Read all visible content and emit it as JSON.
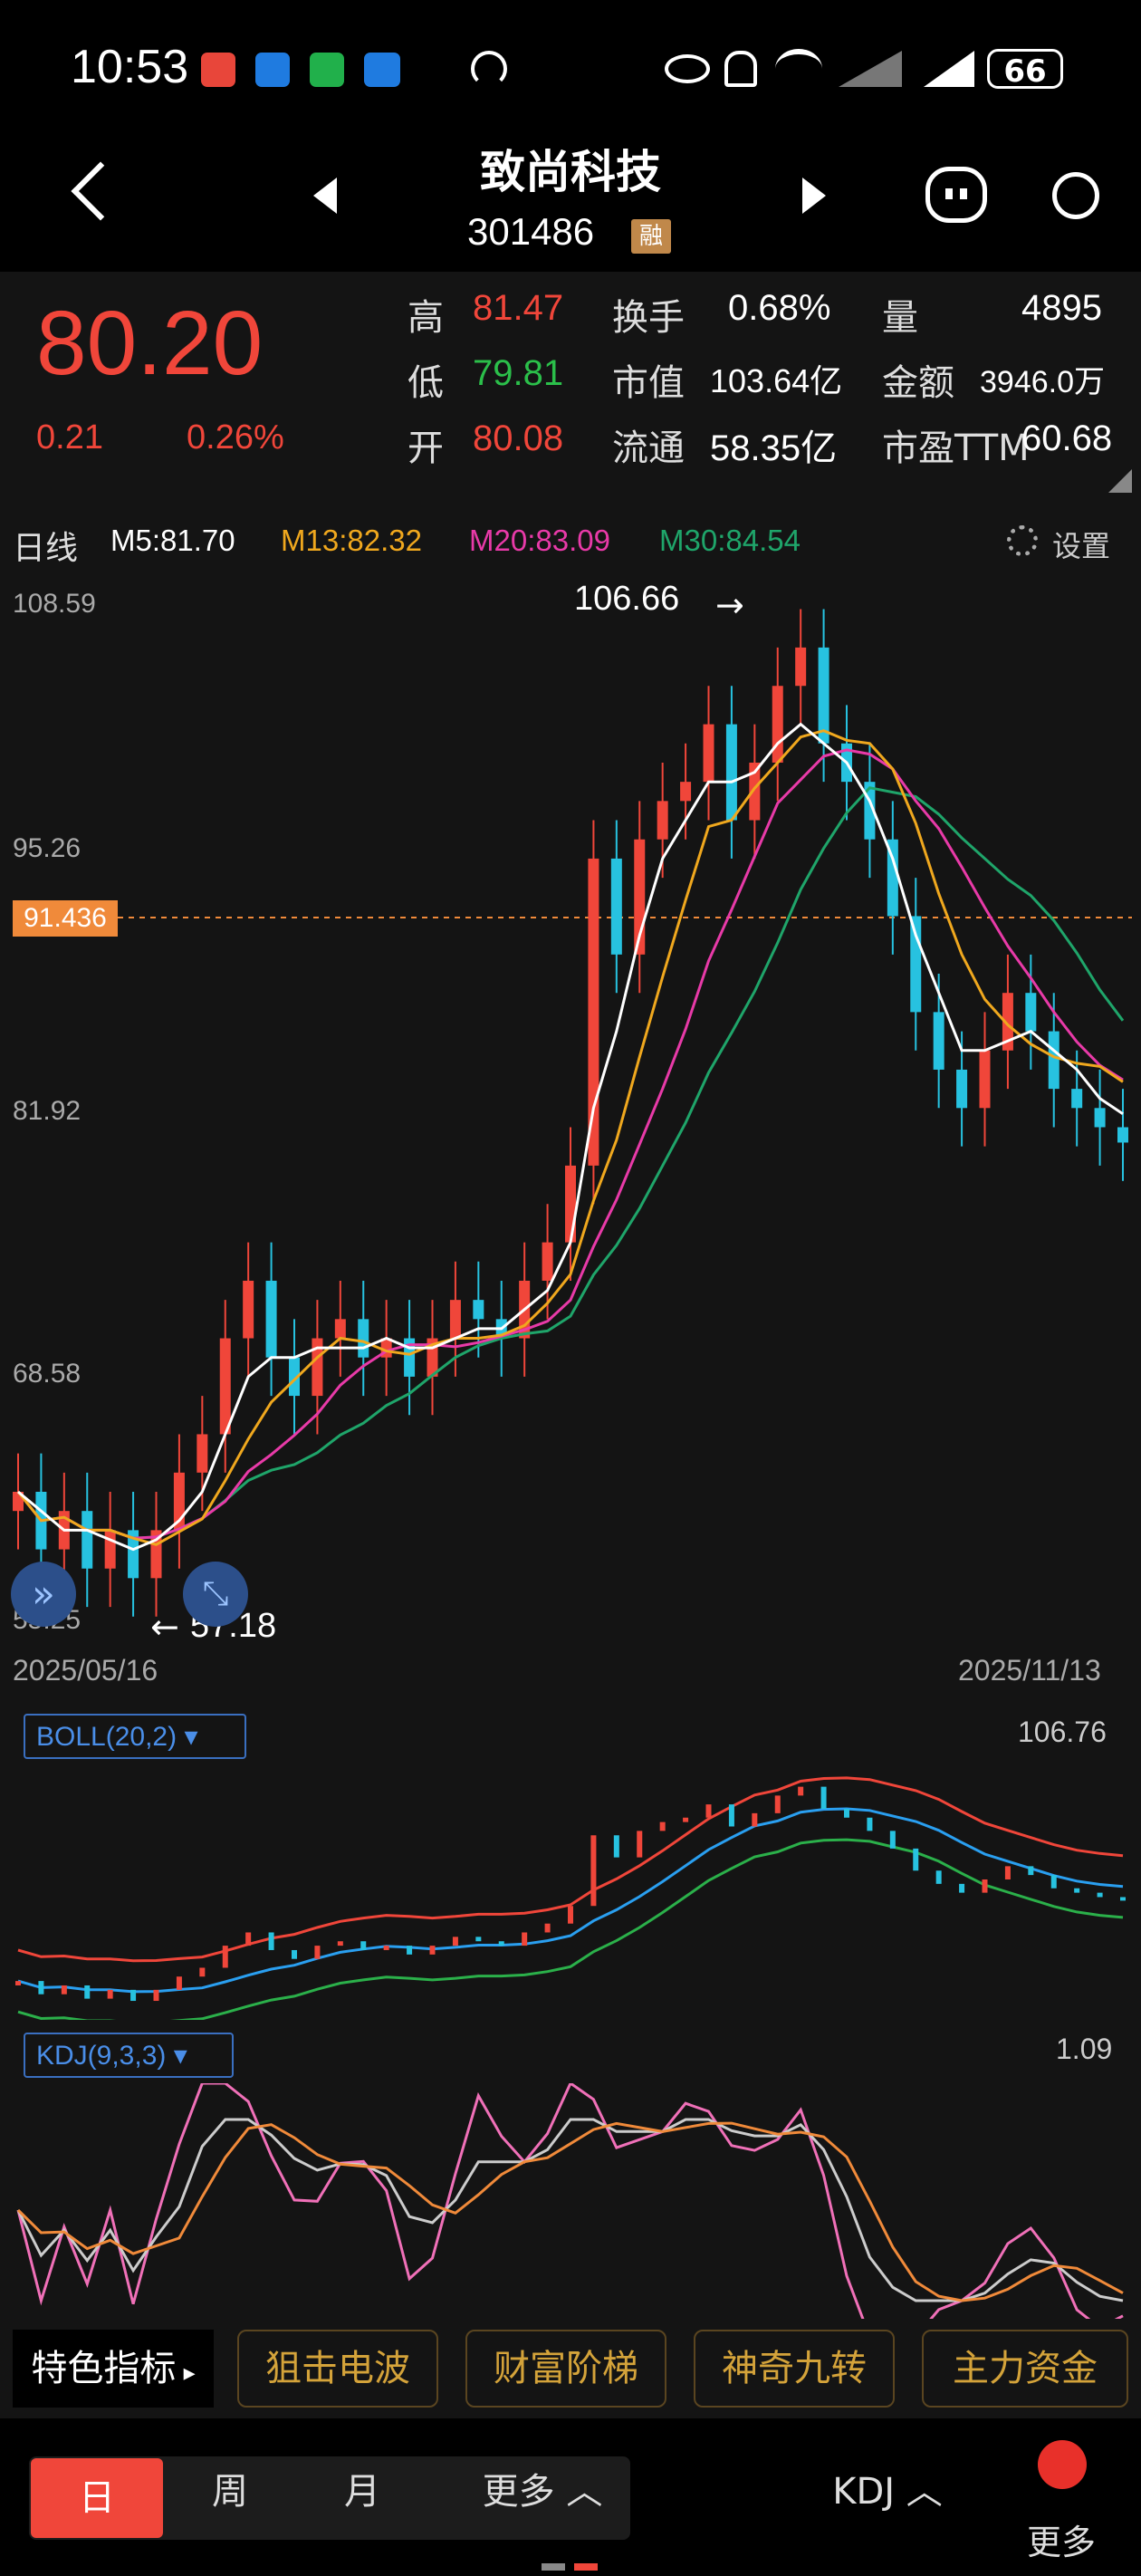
{
  "status_bar": {
    "time": "10:53",
    "battery": "66"
  },
  "header": {
    "name": "致尚科技",
    "code": "301486",
    "badge": "融"
  },
  "quote": {
    "price": "80.20",
    "change": "0.21",
    "change_pct": "0.26%",
    "high_label": "高",
    "high": "81.47",
    "low_label": "低",
    "low": "79.81",
    "open_label": "开",
    "open": "80.08",
    "turnover_label": "换手",
    "turnover": "0.68%",
    "mktcap_label": "市值",
    "mktcap": "103.64亿",
    "float_label": "流通",
    "float": "58.35亿",
    "volume_label": "量",
    "volume": "4895",
    "amount_label": "金额",
    "amount": "3946.0万",
    "pe_label": "市盈TTM",
    "pe": "60.68"
  },
  "chart": {
    "period": "日线",
    "ma5": "M5:81.70",
    "ma13": "M13:82.32",
    "ma20": "M20:83.09",
    "ma30": "M30:84.54",
    "settings": "设置",
    "y_labels": [
      "108.59",
      "95.26",
      "81.92",
      "68.58",
      "55.25"
    ],
    "crosshair_price": "91.436",
    "high_mark": "106.66",
    "low_mark": "57.18",
    "start_date": "2025/05/16",
    "end_date": "2025/11/13",
    "boll_label": "BOLL(20,2)",
    "boll_value": "106.76",
    "kdj_label": "KDJ(9,3,3)",
    "kdj_value": "1.09"
  },
  "indicators": {
    "feature": "特色指标",
    "items": [
      "狙击电波",
      "财富阶梯",
      "神奇九转",
      "主力资金"
    ]
  },
  "tabs": {
    "day": "日",
    "week": "周",
    "month": "月",
    "more": "更多",
    "kdj": "KDJ",
    "more2": "更多"
  },
  "colors": {
    "up": "#f0463a",
    "down": "#27c2e0",
    "ma5": "#ffffff",
    "ma13": "#f0a81e",
    "ma20": "#e83aa8",
    "ma30": "#1fa56a",
    "accent": "#f0463a"
  },
  "chart_data": {
    "type": "candlestick",
    "x_range": [
      "2025/05/16",
      "2025/11/13"
    ],
    "ylim": [
      55.25,
      108.59
    ],
    "y_ticks": [
      108.59,
      95.26,
      81.92,
      68.58,
      55.25
    ],
    "current": 80.2,
    "max": 106.66,
    "min": 57.18,
    "close_series": [
      62,
      59,
      61,
      58,
      60,
      57.5,
      60,
      63,
      65,
      70,
      73,
      69,
      67,
      70,
      71,
      69,
      70,
      68,
      70,
      72,
      71,
      70,
      73,
      75,
      79,
      95,
      90,
      96,
      98,
      99,
      102,
      97,
      100,
      104,
      106,
      101,
      99,
      96,
      92,
      87,
      84,
      82,
      85,
      88,
      86,
      83,
      82,
      81,
      80.2
    ],
    "ma5_series": [
      62,
      61,
      60,
      60,
      59.5,
      59,
      59.5,
      60.5,
      62,
      65,
      68,
      69,
      69,
      69.5,
      69.5,
      69.5,
      70,
      69.5,
      69.5,
      70,
      70.5,
      70.5,
      71.5,
      72.5,
      75,
      82,
      86,
      91,
      95,
      97,
      99,
      99,
      99.5,
      101,
      102,
      101,
      100,
      98,
      95,
      91,
      88,
      85,
      85,
      85.5,
      86,
      85,
      84,
      82.5,
      81.7
    ]
  }
}
